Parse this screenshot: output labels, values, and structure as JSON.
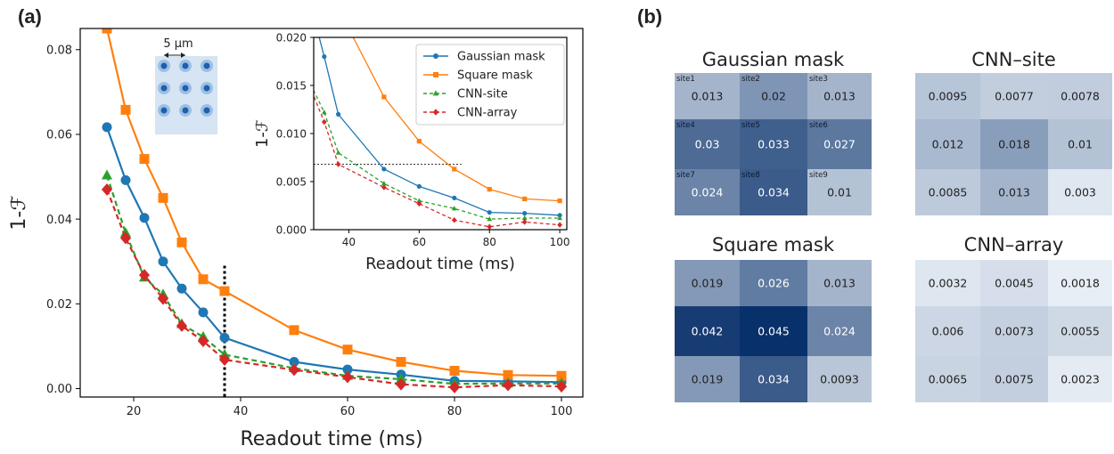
{
  "panel_a_label": "(a)",
  "panel_b_label": "(b)",
  "colors": {
    "gaussian": "#1f77b4",
    "square": "#ff7f0e",
    "cnn_site": "#2ca02c",
    "cnn_array": "#d62728",
    "heat_low": "#f7fbff",
    "heat_high": "#08306b"
  },
  "chart_data": [
    {
      "type": "line",
      "panel": "(a)",
      "xlabel": "Readout time  (ms)",
      "ylabel": "1-ℱ",
      "xlim": [
        10,
        104
      ],
      "ylim": [
        -0.002,
        0.085
      ],
      "xticks": [
        20,
        40,
        60,
        80,
        100
      ],
      "xtick_labels": [
        "20",
        "40",
        "60",
        "80",
        "100"
      ],
      "yticks": [
        0.0,
        0.02,
        0.04,
        0.06,
        0.08
      ],
      "ytick_labels": [
        "0.00",
        "0.02",
        "0.04",
        "0.06",
        "0.08"
      ],
      "grid": false,
      "vertical_marker_x": 37,
      "inset_image_label": "5 μm",
      "series": [
        {
          "key": "gaussian",
          "marker": "circle",
          "dash": "solid",
          "x": [
            15,
            18.5,
            22,
            25.5,
            29,
            33,
            37,
            50,
            60,
            70,
            80,
            90,
            100
          ],
          "y": [
            0.0617,
            0.0492,
            0.0403,
            0.03,
            0.0236,
            0.018,
            0.012,
            0.0063,
            0.0045,
            0.0033,
            0.0018,
            0.0017,
            0.0015
          ]
        },
        {
          "key": "square",
          "marker": "square",
          "dash": "solid",
          "x": [
            15,
            18.5,
            22,
            25.5,
            29,
            33,
            37,
            50,
            60,
            70,
            80,
            90,
            100
          ],
          "y": [
            0.085,
            0.0658,
            0.0542,
            0.045,
            0.0345,
            0.0258,
            0.023,
            0.0138,
            0.0092,
            0.0063,
            0.0042,
            0.0032,
            0.003
          ]
        },
        {
          "key": "cnn_site",
          "marker": "triangle",
          "dash": "dashed",
          "x": [
            15,
            18.5,
            22,
            25.5,
            29,
            33,
            37,
            50,
            60,
            70,
            80,
            90,
            100
          ],
          "y": [
            0.0503,
            0.0367,
            0.0262,
            0.0222,
            0.0152,
            0.0122,
            0.008,
            0.0048,
            0.003,
            0.0022,
            0.0011,
            0.0012,
            0.0012
          ]
        },
        {
          "key": "cnn_array",
          "marker": "diamond",
          "dash": "dashed",
          "x": [
            15,
            18.5,
            22,
            25.5,
            29,
            33,
            37,
            50,
            60,
            70,
            80,
            90,
            100
          ],
          "y": [
            0.047,
            0.0355,
            0.0268,
            0.0212,
            0.0148,
            0.0112,
            0.0068,
            0.0044,
            0.0027,
            0.001,
            0.0003,
            0.0008,
            0.0005
          ]
        }
      ]
    },
    {
      "type": "line",
      "panel": "(a) inset",
      "xlabel": "Readout time (ms)",
      "ylabel": "1-ℱ",
      "xlim": [
        30,
        102
      ],
      "ylim": [
        0.0,
        0.02
      ],
      "xticks": [
        40,
        60,
        80,
        100
      ],
      "xtick_labels": [
        "40",
        "60",
        "80",
        "100"
      ],
      "yticks": [
        0.0,
        0.005,
        0.01,
        0.015,
        0.02
      ],
      "ytick_labels": [
        "0.000",
        "0.005",
        "0.010",
        "0.015",
        "0.020"
      ],
      "threshold_line": {
        "y": 0.0068,
        "x_to": 72
      },
      "legend_position": "top-right",
      "legend": [
        "Gaussian mask",
        "Square mask",
        "CNN-site",
        "CNN-array"
      ]
    },
    {
      "type": "heatmap",
      "panel": "(b)",
      "color_max": 0.045,
      "site_labels": [
        "site1",
        "site2",
        "site3",
        "site4",
        "site5",
        "site6",
        "site7",
        "site8",
        "site9"
      ],
      "grids": [
        {
          "title": "Gaussian mask",
          "show_site_labels": true,
          "values": [
            0.013,
            0.02,
            0.013,
            0.03,
            0.033,
            0.027,
            0.024,
            0.034,
            0.01
          ],
          "labels": [
            "0.013",
            "0.02",
            "0.013",
            "0.03",
            "0.033",
            "0.027",
            "0.024",
            "0.034",
            "0.01"
          ]
        },
        {
          "title": "CNN–site",
          "show_site_labels": false,
          "values": [
            0.0095,
            0.0077,
            0.0078,
            0.012,
            0.018,
            0.01,
            0.0085,
            0.013,
            0.003
          ],
          "labels": [
            "0.0095",
            "0.0077",
            "0.0078",
            "0.012",
            "0.018",
            "0.01",
            "0.0085",
            "0.013",
            "0.003"
          ]
        },
        {
          "title": "Square mask",
          "show_site_labels": false,
          "values": [
            0.019,
            0.026,
            0.013,
            0.042,
            0.045,
            0.024,
            0.019,
            0.034,
            0.0093
          ],
          "labels": [
            "0.019",
            "0.026",
            "0.013",
            "0.042",
            "0.045",
            "0.024",
            "0.019",
            "0.034",
            "0.0093"
          ]
        },
        {
          "title": "CNN–array",
          "show_site_labels": false,
          "values": [
            0.0032,
            0.0045,
            0.0018,
            0.006,
            0.0073,
            0.0055,
            0.0065,
            0.0075,
            0.0023
          ],
          "labels": [
            "0.0032",
            "0.0045",
            "0.0018",
            "0.006",
            "0.0073",
            "0.0055",
            "0.0065",
            "0.0075",
            "0.0023"
          ]
        }
      ]
    }
  ]
}
